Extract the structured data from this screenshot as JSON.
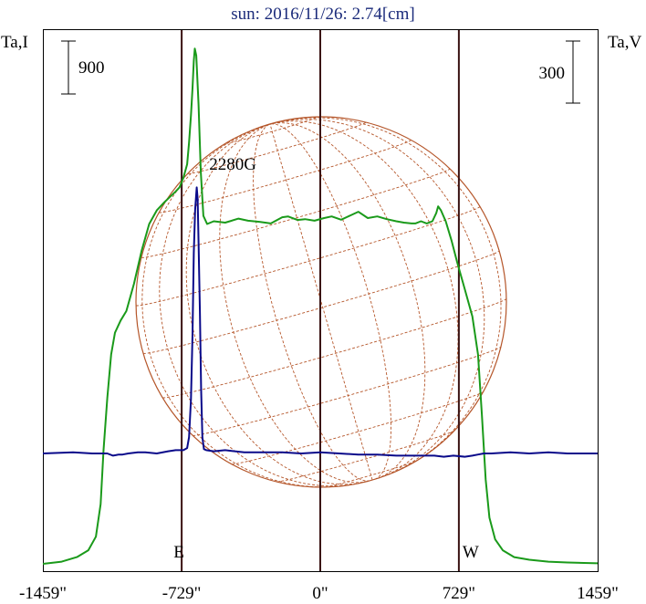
{
  "chart_data": {
    "type": "line",
    "title": "sun: 2016/11/26: 2.74[cm]",
    "y_left_label": "Ta,I",
    "y_right_label": "Ta,V",
    "scale_bar_left": "900",
    "scale_bar_right": "300",
    "x_ticks": [
      {
        "value": -1459,
        "label": "-1459\""
      },
      {
        "value": -729,
        "label": "-729\""
      },
      {
        "value": 0,
        "label": "0\""
      },
      {
        "value": 729,
        "label": "729\""
      },
      {
        "value": 1459,
        "label": "1459\""
      }
    ],
    "xlim": [
      -1459,
      1459
    ],
    "limb_markers": [
      {
        "value": -729,
        "label": "E"
      },
      {
        "value": 0,
        "label": ""
      },
      {
        "value": 729,
        "label": "W"
      }
    ],
    "annotation": "2280G",
    "annotation_x": -460,
    "colors": {
      "intensity": "#1a9a1a",
      "polarization": "#0a0a8a",
      "disk": "#b5562a",
      "limb": "#3a1212"
    },
    "series": [
      {
        "name": "I",
        "color": "#1a9a1a",
        "points": [
          [
            -1459,
            10
          ],
          [
            -1360,
            18
          ],
          [
            -1280,
            35
          ],
          [
            -1220,
            60
          ],
          [
            -1180,
            110
          ],
          [
            -1155,
            230
          ],
          [
            -1140,
            430
          ],
          [
            -1120,
            620
          ],
          [
            -1100,
            780
          ],
          [
            -1080,
            860
          ],
          [
            -1050,
            905
          ],
          [
            -1020,
            940
          ],
          [
            -980,
            1040
          ],
          [
            -940,
            1160
          ],
          [
            -900,
            1260
          ],
          [
            -860,
            1310
          ],
          [
            -820,
            1340
          ],
          [
            -790,
            1360
          ],
          [
            -760,
            1380
          ],
          [
            -740,
            1395
          ],
          [
            -720,
            1430
          ],
          [
            -700,
            1480
          ],
          [
            -690,
            1560
          ],
          [
            -680,
            1660
          ],
          [
            -672,
            1760
          ],
          [
            -665,
            1860
          ],
          [
            -660,
            1905
          ],
          [
            -652,
            1880
          ],
          [
            -640,
            1700
          ],
          [
            -628,
            1450
          ],
          [
            -615,
            1290
          ],
          [
            -595,
            1260
          ],
          [
            -560,
            1270
          ],
          [
            -500,
            1265
          ],
          [
            -430,
            1280
          ],
          [
            -380,
            1272
          ],
          [
            -320,
            1268
          ],
          [
            -260,
            1262
          ],
          [
            -200,
            1285
          ],
          [
            -170,
            1288
          ],
          [
            -120,
            1275
          ],
          [
            -80,
            1278
          ],
          [
            -30,
            1272
          ],
          [
            20,
            1282
          ],
          [
            60,
            1288
          ],
          [
            110,
            1276
          ],
          [
            160,
            1292
          ],
          [
            200,
            1305
          ],
          [
            250,
            1282
          ],
          [
            300,
            1288
          ],
          [
            350,
            1278
          ],
          [
            400,
            1270
          ],
          [
            440,
            1265
          ],
          [
            480,
            1262
          ],
          [
            500,
            1262
          ],
          [
            530,
            1270
          ],
          [
            560,
            1262
          ],
          [
            590,
            1270
          ],
          [
            610,
            1300
          ],
          [
            620,
            1325
          ],
          [
            635,
            1310
          ],
          [
            660,
            1270
          ],
          [
            690,
            1200
          ],
          [
            720,
            1120
          ],
          [
            760,
            1020
          ],
          [
            800,
            920
          ],
          [
            830,
            780
          ],
          [
            850,
            560
          ],
          [
            870,
            320
          ],
          [
            890,
            180
          ],
          [
            920,
            100
          ],
          [
            960,
            60
          ],
          [
            1020,
            35
          ],
          [
            1100,
            25
          ],
          [
            1200,
            18
          ],
          [
            1300,
            15
          ],
          [
            1459,
            12
          ]
        ]
      },
      {
        "name": "V",
        "color": "#0a0a8a",
        "points": [
          [
            -1459,
            0
          ],
          [
            -1300,
            1
          ],
          [
            -1200,
            0
          ],
          [
            -1120,
            0
          ],
          [
            -1090,
            -2
          ],
          [
            -1060,
            -1
          ],
          [
            -1040,
            -1
          ],
          [
            -1010,
            0
          ],
          [
            -960,
            1
          ],
          [
            -920,
            1
          ],
          [
            -860,
            0
          ],
          [
            -800,
            2
          ],
          [
            -760,
            3
          ],
          [
            -720,
            3
          ],
          [
            -700,
            5
          ],
          [
            -690,
            15
          ],
          [
            -680,
            50
          ],
          [
            -672,
            110
          ],
          [
            -665,
            185
          ],
          [
            -658,
            225
          ],
          [
            -650,
            245
          ],
          [
            -645,
            235
          ],
          [
            -640,
            195
          ],
          [
            -633,
            130
          ],
          [
            -627,
            60
          ],
          [
            -620,
            15
          ],
          [
            -612,
            4
          ],
          [
            -600,
            3
          ],
          [
            -560,
            2
          ],
          [
            -500,
            3
          ],
          [
            -400,
            1
          ],
          [
            -300,
            1
          ],
          [
            -200,
            1
          ],
          [
            -100,
            0
          ],
          [
            0,
            1
          ],
          [
            100,
            0
          ],
          [
            200,
            -1
          ],
          [
            300,
            -1
          ],
          [
            400,
            -2
          ],
          [
            500,
            -2
          ],
          [
            600,
            -2
          ],
          [
            650,
            -3
          ],
          [
            700,
            -2
          ],
          [
            760,
            -3
          ],
          [
            800,
            -2
          ],
          [
            830,
            -1
          ],
          [
            860,
            0
          ],
          [
            900,
            0
          ],
          [
            1000,
            1
          ],
          [
            1100,
            0
          ],
          [
            1200,
            1
          ],
          [
            1300,
            0
          ],
          [
            1459,
            0
          ]
        ]
      }
    ]
  }
}
